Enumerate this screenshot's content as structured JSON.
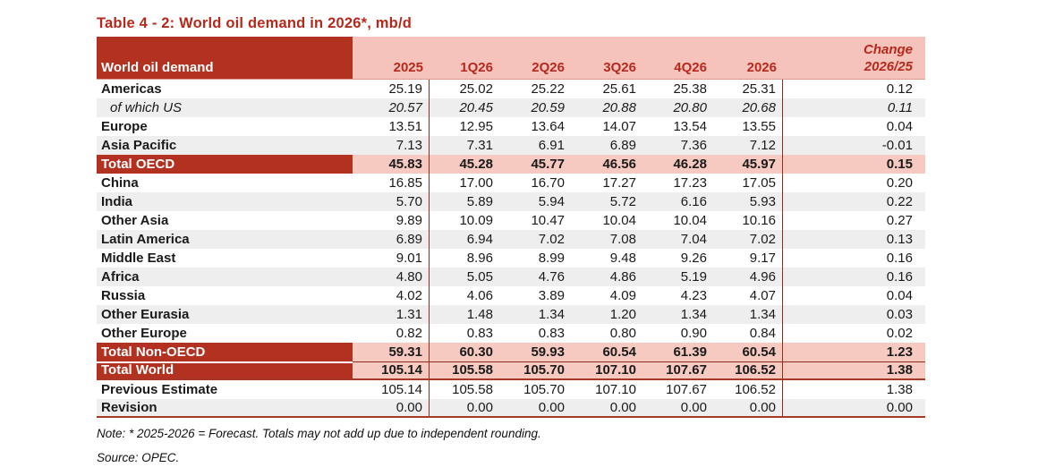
{
  "title": "Table 4 - 2: World oil demand in 2026*, mb/d",
  "colors": {
    "accent_dark_red": "#b23120",
    "header_pink": "#f6c3bc",
    "total_row_pink": "#f6c9c1",
    "stripe_gray": "#eeeeee",
    "rule_maroon": "#8e2f1e"
  },
  "table": {
    "label_header": "World oil demand",
    "col_headers": [
      "2025",
      "1Q26",
      "2Q26",
      "3Q26",
      "4Q26",
      "2026"
    ],
    "change_header_line1": "Change",
    "change_header_line2": "2026/25",
    "rows": [
      {
        "label": "Americas",
        "type": "normal",
        "values": [
          "25.19",
          "25.02",
          "25.22",
          "25.61",
          "25.38",
          "25.31",
          "0.12"
        ]
      },
      {
        "label": "of which US",
        "type": "italic",
        "values": [
          "20.57",
          "20.45",
          "20.59",
          "20.88",
          "20.80",
          "20.68",
          "0.11"
        ]
      },
      {
        "label": "Europe",
        "type": "normal",
        "values": [
          "13.51",
          "12.95",
          "13.64",
          "14.07",
          "13.54",
          "13.55",
          "0.04"
        ]
      },
      {
        "label": "Asia Pacific",
        "type": "normal",
        "values": [
          "7.13",
          "7.31",
          "6.91",
          "6.89",
          "7.36",
          "7.12",
          "-0.01"
        ]
      },
      {
        "label": "Total OECD",
        "type": "total",
        "values": [
          "45.83",
          "45.28",
          "45.77",
          "46.56",
          "46.28",
          "45.97",
          "0.15"
        ]
      },
      {
        "label": "China",
        "type": "normal",
        "values": [
          "16.85",
          "17.00",
          "16.70",
          "17.27",
          "17.23",
          "17.05",
          "0.20"
        ]
      },
      {
        "label": "India",
        "type": "normal",
        "values": [
          "5.70",
          "5.89",
          "5.94",
          "5.72",
          "6.16",
          "5.93",
          "0.22"
        ]
      },
      {
        "label": "Other Asia",
        "type": "normal",
        "values": [
          "9.89",
          "10.09",
          "10.47",
          "10.04",
          "10.04",
          "10.16",
          "0.27"
        ]
      },
      {
        "label": "Latin America",
        "type": "normal",
        "values": [
          "6.89",
          "6.94",
          "7.02",
          "7.08",
          "7.04",
          "7.02",
          "0.13"
        ]
      },
      {
        "label": "Middle East",
        "type": "normal",
        "values": [
          "9.01",
          "8.96",
          "8.99",
          "9.48",
          "9.26",
          "9.17",
          "0.16"
        ]
      },
      {
        "label": "Africa",
        "type": "normal",
        "values": [
          "4.80",
          "5.05",
          "4.76",
          "4.86",
          "5.19",
          "4.96",
          "0.16"
        ]
      },
      {
        "label": "Russia",
        "type": "normal",
        "values": [
          "4.02",
          "4.06",
          "3.89",
          "4.09",
          "4.23",
          "4.07",
          "0.04"
        ]
      },
      {
        "label": "Other Eurasia",
        "type": "normal",
        "values": [
          "1.31",
          "1.48",
          "1.34",
          "1.20",
          "1.34",
          "1.34",
          "0.03"
        ]
      },
      {
        "label": "Other Europe",
        "type": "normal",
        "values": [
          "0.82",
          "0.83",
          "0.83",
          "0.80",
          "0.90",
          "0.84",
          "0.02"
        ]
      },
      {
        "label": "Total Non-OECD",
        "type": "total",
        "values": [
          "59.31",
          "60.30",
          "59.93",
          "60.54",
          "61.39",
          "60.54",
          "1.23"
        ]
      },
      {
        "label": "Total World",
        "type": "total",
        "values": [
          "105.14",
          "105.58",
          "105.70",
          "107.10",
          "107.67",
          "106.52",
          "1.38"
        ]
      },
      {
        "label": "Previous Estimate",
        "type": "normal",
        "values": [
          "105.14",
          "105.58",
          "105.70",
          "107.10",
          "107.67",
          "106.52",
          "1.38"
        ]
      },
      {
        "label": "Revision",
        "type": "normal",
        "values": [
          "0.00",
          "0.00",
          "0.00",
          "0.00",
          "0.00",
          "0.00",
          "0.00"
        ]
      }
    ]
  },
  "notes": {
    "note": "Note: * 2025-2026 = Forecast. Totals may not add up due to independent rounding.",
    "source": "Source: OPEC."
  }
}
